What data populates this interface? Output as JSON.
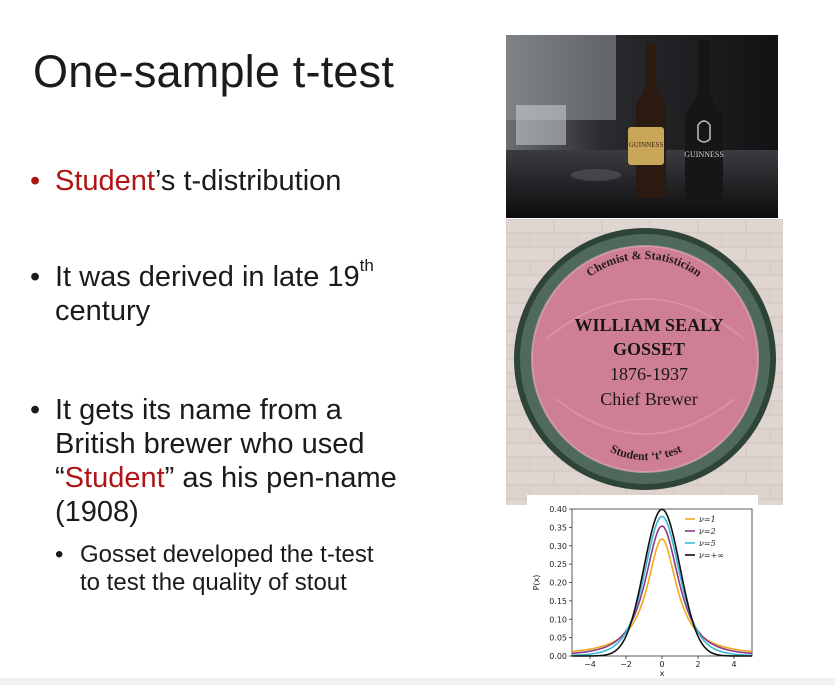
{
  "slide": {
    "title": "One-sample t-test",
    "bullets": [
      {
        "red": "Student",
        "rest": "’s t-distribution"
      },
      {
        "line1": "It was derived in late 19",
        "sup": "th",
        "line2": "century"
      },
      {
        "line1": "It gets its name from a",
        "line2": "British brewer who used",
        "quote_open": "“",
        "red": "Student",
        "quote_rest": "” as his pen-name",
        "line4": "(1908)"
      }
    ],
    "sub_bullet": {
      "line1": "Gosset developed the t-test",
      "line2": "to test the quality of stout"
    },
    "bullet_char": "•",
    "accent_color": "#b01515"
  },
  "beer_photo": {
    "label1": "GUINNESS",
    "label2": "GUINNESS"
  },
  "plaque": {
    "arc_top": "Chemist & Statistician",
    "name1": "WILLIAM SEALY",
    "name2": "GOSSET",
    "years": "1876-1937",
    "role": "Chief Brewer",
    "arc_bottom": "Student ‘t’ test"
  },
  "chart_data": {
    "type": "line",
    "title": "",
    "xlabel": "x",
    "ylabel": "P(x)",
    "xlim": [
      -5,
      5
    ],
    "ylim": [
      0,
      0.4
    ],
    "xticks": [
      "−4",
      "−2",
      "0",
      "2",
      "4"
    ],
    "xtick_values": [
      -4,
      -2,
      0,
      2,
      4
    ],
    "yticks": [
      "0.00",
      "0.05",
      "0.10",
      "0.15",
      "0.20",
      "0.25",
      "0.30",
      "0.35",
      "0.40"
    ],
    "ytick_values": [
      0,
      0.05,
      0.1,
      0.15,
      0.2,
      0.25,
      0.3,
      0.35,
      0.4
    ],
    "series": [
      {
        "name": "ν=1",
        "dof": 1,
        "color": "#f0a91c",
        "peak": 0.318
      },
      {
        "name": "ν=2",
        "dof": 2,
        "color": "#8a3a8c",
        "peak": 0.354
      },
      {
        "name": "ν=5",
        "dof": 5,
        "color": "#38b9d4",
        "peak": 0.38
      },
      {
        "name": "ν=+∞",
        "dof": "inf",
        "color": "#111111",
        "peak": 0.399
      }
    ],
    "legend": "top-right"
  }
}
